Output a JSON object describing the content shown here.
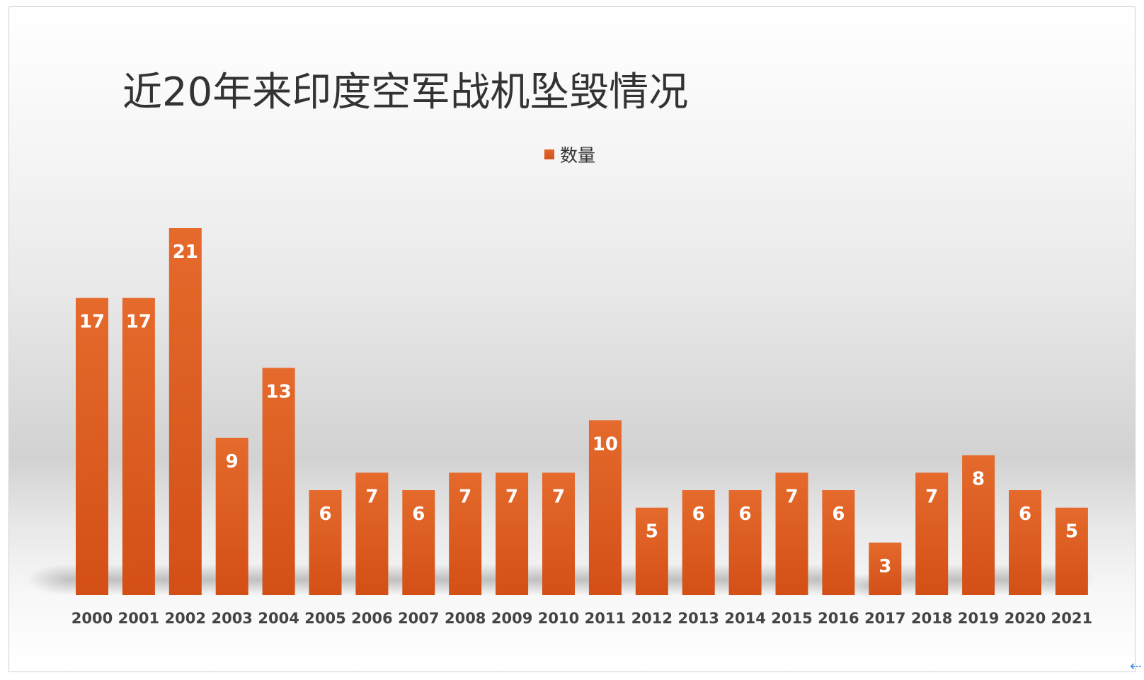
{
  "chart_data": {
    "type": "bar",
    "title": "近20年来印度空军战机坠毁情况",
    "xlabel": "",
    "ylabel": "",
    "categories": [
      "2000",
      "2001",
      "2002",
      "2003",
      "2004",
      "2005",
      "2006",
      "2007",
      "2008",
      "2009",
      "2010",
      "2011",
      "2012",
      "2013",
      "2014",
      "2015",
      "2016",
      "2017",
      "2018",
      "2019",
      "2020",
      "2021"
    ],
    "series": [
      {
        "name": "数量",
        "values": [
          17,
          17,
          21,
          9,
          13,
          6,
          7,
          6,
          7,
          7,
          7,
          10,
          5,
          6,
          6,
          7,
          6,
          3,
          7,
          8,
          6,
          5
        ]
      }
    ],
    "ylim": [
      0,
      21
    ],
    "grid": false,
    "legend_position": "top-center",
    "data_labels": true,
    "colors": {
      "bar": "#d9581f",
      "bar_light": "#e56a2c",
      "label": "#ffffff",
      "axis_text": "#444444"
    }
  }
}
